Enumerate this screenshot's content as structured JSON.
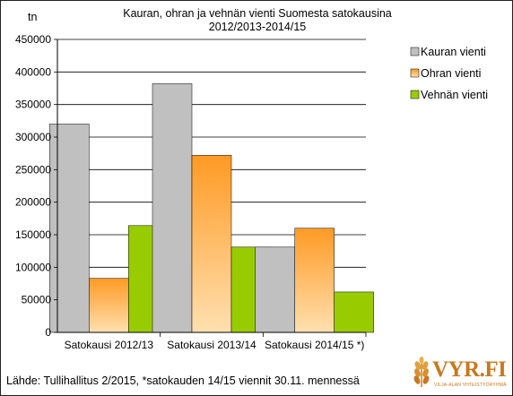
{
  "chart_data": {
    "type": "bar",
    "title_line1": "Kauran, ohran  ja vehnän  vienti  Suomesta satokausina",
    "title_line2": "2012/2013-2014/15",
    "ylabel": "tn",
    "xlabel": "",
    "ylim": [
      0,
      450000
    ],
    "yticks": [
      "0",
      "50000",
      "100000",
      "150000",
      "200000",
      "250000",
      "300000",
      "350000",
      "400000",
      "450000"
    ],
    "grid": true,
    "legend_position": "top-right",
    "categories": [
      "Satokausi 2012/13",
      "Satokausi 2013/14",
      "Satokausi 2014/15 *)"
    ],
    "series": [
      {
        "name": "Kauran vienti",
        "values": [
          320000,
          382000,
          131000
        ],
        "color_top": "#c0c0c0",
        "color_bottom": "#c0c0c0"
      },
      {
        "name": "Ohran vienti",
        "values": [
          83000,
          272000,
          160000
        ],
        "color_top": "#ff9a24",
        "color_bottom": "#ffe0b0"
      },
      {
        "name": "Vehnän vienti",
        "values": [
          164000,
          131000,
          62000
        ],
        "color_top": "#99cc00",
        "color_bottom": "#99cc00"
      }
    ]
  },
  "footer": {
    "source": "Lähde: Tullihallitus 2/2015, *satokauden 14/15 viennit 30.11. mennessä"
  },
  "logo": {
    "text": "VYR.FI",
    "subtext": "VILJA-ALAN YHTEISTYÖRYHMÄ",
    "icon": "wheat-icon"
  }
}
